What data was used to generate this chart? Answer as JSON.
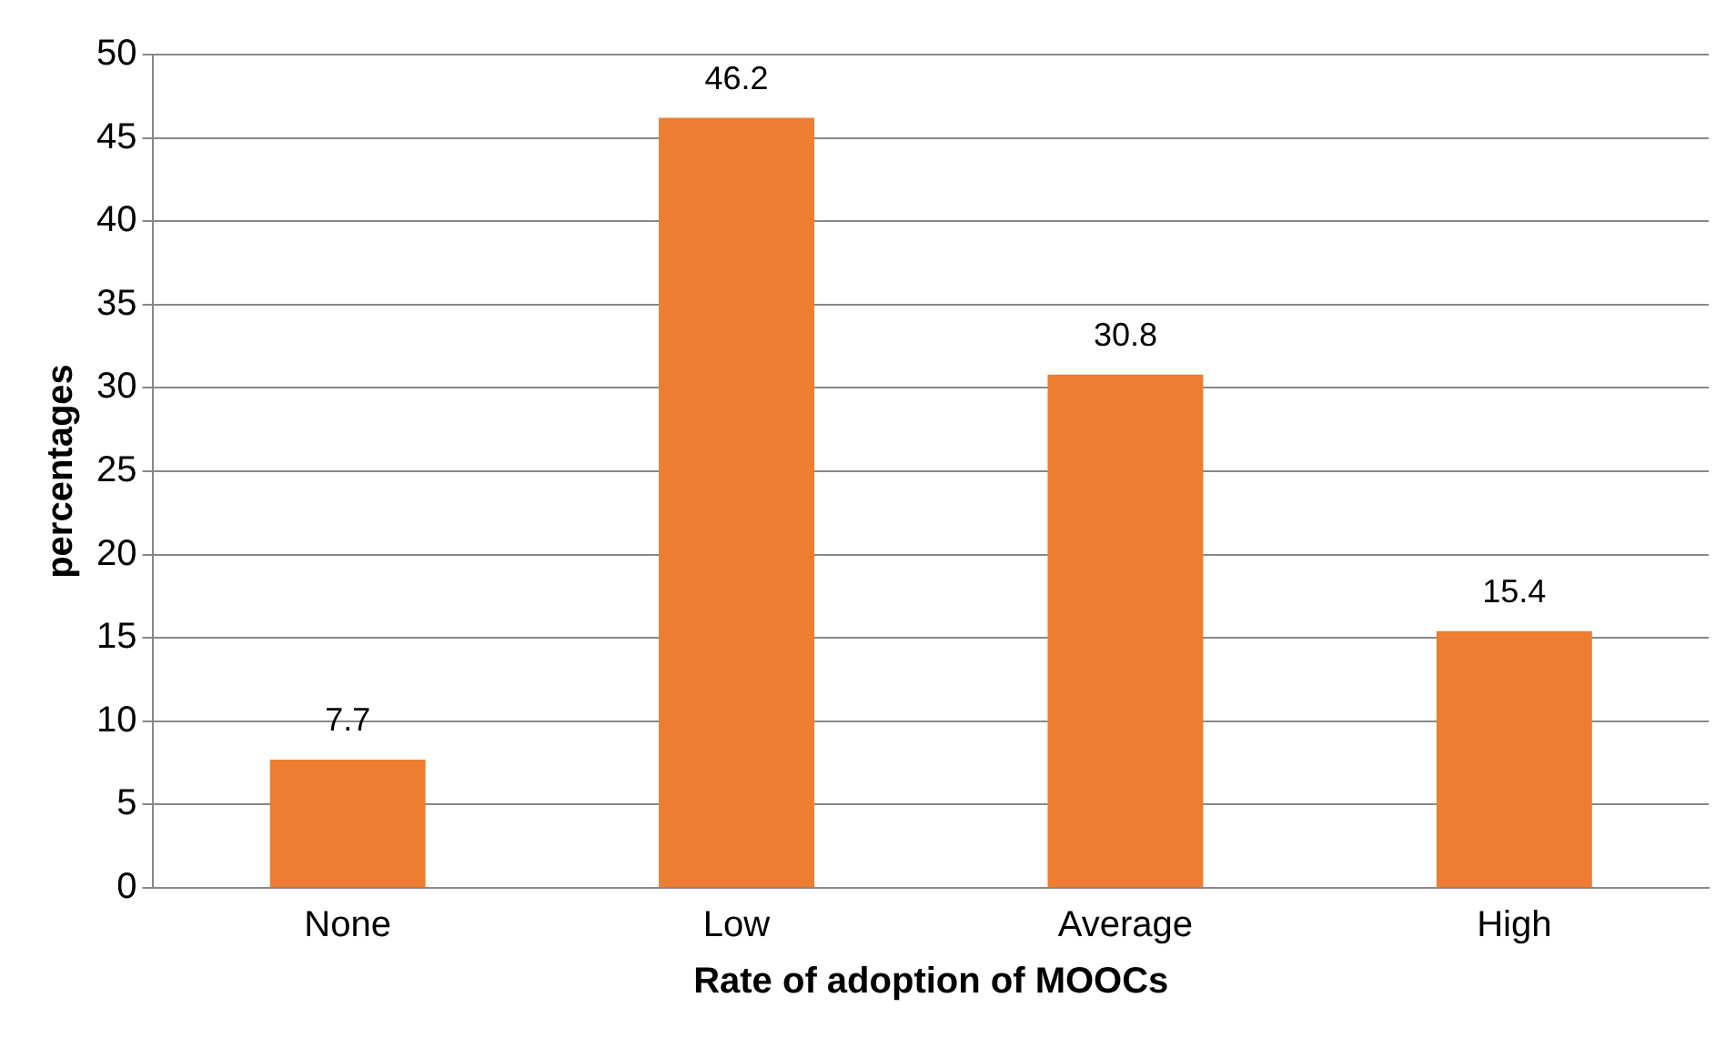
{
  "chart_data": {
    "type": "bar",
    "xlabel": "Rate of adoption of MOOCs",
    "ylabel": "percentages",
    "categories": [
      "None",
      "Low",
      "Average",
      "High"
    ],
    "values": [
      7.7,
      46.2,
      30.8,
      15.4
    ],
    "color": "#ed7d31",
    "ylim": [
      0,
      50
    ],
    "yticks": [
      0,
      5,
      10,
      15,
      20,
      25,
      30,
      35,
      40,
      45,
      50
    ],
    "grid": "y",
    "legend": false,
    "data_labels": true
  }
}
